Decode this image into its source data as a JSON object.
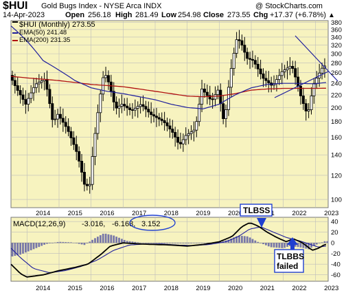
{
  "header": {
    "symbol": "$HUI",
    "description": "Gold Bugs Index - NYSE Arca INDX",
    "credit": "@ StockCharts.com",
    "date": "14-Apr-2023",
    "open_label": "Open",
    "open": "256.18",
    "high_label": "High",
    "high": "281.49",
    "low_label": "Low",
    "low": "254.98",
    "close_label": "Close",
    "close": "273.55",
    "chg_label": "Chg",
    "chg": "+17.37 (+6.78%)",
    "up_arrow": "▲"
  },
  "legend": [
    {
      "label": "$HUI (Monthly) 273.55",
      "color": "#000000"
    },
    {
      "label": "EMA(50) 241.48",
      "color": "#1e1e9c"
    },
    {
      "label": "EMA(200) 231.35",
      "color": "#b01010"
    }
  ],
  "macd_label": {
    "prefix": "MACD(12,26,9)",
    "macd": "-3.016,",
    "signal": "-6.168,",
    "hist": "3.152"
  },
  "annotations": {
    "tlbss": "TLBSS",
    "tlbbs_failed_1": "TLBBS",
    "tlbbs_failed_2": "failed"
  },
  "colors": {
    "panel_bg": "#f7f3bf",
    "grid": "#bcbcbc",
    "candle": "#000000",
    "ema50": "#1e1e9c",
    "ema200": "#b01010",
    "hist": "#7777a8",
    "annotation": "#1f3fd0"
  },
  "chart_data": [
    {
      "type": "candlestick",
      "title": "$HUI Gold Bugs Index - NYSE Arca INDX (Monthly)",
      "x_tick_labels": [
        "2014",
        "2015",
        "2016",
        "2017",
        "2018",
        "2019",
        "2020",
        "2021",
        "2022",
        "2023"
      ],
      "y_tick_labels": [
        100,
        120,
        140,
        160,
        180,
        200,
        220,
        240,
        260,
        280,
        300,
        320,
        340,
        360,
        380
      ],
      "ylim": [
        94,
        385
      ],
      "y_scale": "log",
      "x_range": [
        2013.5,
        2023.4
      ],
      "series": [
        {
          "name": "$HUI (Monthly)",
          "anchors_x": [
            2013.5,
            2013.7,
            2014.0,
            2014.3,
            2014.6,
            2014.85,
            2015.0,
            2015.3,
            2015.6,
            2015.85,
            2016.0,
            2016.2,
            2016.45,
            2016.6,
            2016.8,
            2017.0,
            2017.3,
            2017.6,
            2017.9,
            2018.3,
            2018.6,
            2018.8,
            2019.0,
            2019.3,
            2019.5,
            2019.8,
            2020.0,
            2020.2,
            2020.4,
            2020.6,
            2020.75,
            2020.9,
            2021.1,
            2021.4,
            2021.7,
            2022.0,
            2022.3,
            2022.6,
            2022.8,
            2023.0,
            2023.29
          ],
          "anchors_y": [
            255,
            232,
            205,
            238,
            248,
            178,
            190,
            170,
            142,
            110,
            112,
            175,
            262,
            240,
            198,
            205,
            195,
            205,
            190,
            180,
            165,
            150,
            162,
            170,
            230,
            210,
            228,
            175,
            262,
            340,
            320,
            290,
            285,
            250,
            235,
            262,
            275,
            215,
            188,
            240,
            273.55
          ]
        },
        {
          "name": "EMA(50)",
          "anchors_x": [
            2013.5,
            2014.0,
            2014.5,
            2015.0,
            2015.5,
            2016.0,
            2016.5,
            2017.0,
            2017.5,
            2018.0,
            2018.5,
            2019.0,
            2019.5,
            2020.0,
            2020.5,
            2021.0,
            2021.5,
            2022.0,
            2022.5,
            2023.0,
            2023.29
          ],
          "anchors_y": [
            370,
            330,
            285,
            265,
            245,
            232,
            226,
            222,
            217,
            212,
            205,
            200,
            198,
            205,
            220,
            232,
            238,
            240,
            240,
            239,
            241.48
          ]
        },
        {
          "name": "EMA(200)",
          "anchors_x": [
            2013.5,
            2014.0,
            2015.0,
            2016.0,
            2016.5,
            2017.0,
            2017.5,
            2018.0,
            2018.5,
            2019.0,
            2019.5,
            2020.0,
            2020.5,
            2021.0,
            2021.5,
            2022.0,
            2022.5,
            2023.0,
            2023.29
          ],
          "anchors_y": [
            253,
            250,
            245,
            238,
            236,
            234,
            230,
            226,
            222,
            218,
            217,
            218,
            222,
            228,
            230,
            231,
            231,
            231,
            231.35
          ]
        }
      ]
    },
    {
      "type": "line",
      "title": "MACD(12,26,9)",
      "y_tick_labels": [
        40,
        20,
        0,
        -20,
        -40,
        -60
      ],
      "ylim": [
        -72,
        48
      ],
      "series": [
        {
          "name": "MACD",
          "anchors_x": [
            2013.5,
            2013.8,
            2014.0,
            2014.5,
            2015.0,
            2015.5,
            2015.9,
            2016.3,
            2016.6,
            2017.0,
            2017.5,
            2018.0,
            2018.5,
            2019.0,
            2019.5,
            2020.0,
            2020.4,
            2020.7,
            2020.95,
            2021.2,
            2021.5,
            2021.8,
            2022.1,
            2022.3,
            2022.6,
            2022.9,
            2023.1,
            2023.29
          ],
          "anchors_y": [
            -40,
            -58,
            -64,
            -60,
            -52,
            -46,
            -40,
            -22,
            -6,
            0,
            -2,
            -3,
            -4,
            -6,
            -3,
            2,
            12,
            30,
            38,
            32,
            20,
            10,
            2,
            8,
            0,
            -14,
            -10,
            -3.016
          ]
        },
        {
          "name": "Signal",
          "anchors_x": [
            2013.5,
            2013.8,
            2014.2,
            2014.7,
            2015.2,
            2015.7,
            2016.2,
            2016.7,
            2017.2,
            2017.7,
            2018.2,
            2018.7,
            2019.2,
            2019.7,
            2020.2,
            2020.6,
            2020.95,
            2021.3,
            2021.7,
            2022.1,
            2022.5,
            2022.9,
            2023.1,
            2023.29
          ],
          "anchors_y": [
            -10,
            -28,
            -48,
            -56,
            -52,
            -44,
            -32,
            -14,
            -4,
            -2,
            -2,
            -4,
            -5,
            -3,
            2,
            12,
            26,
            30,
            20,
            10,
            4,
            -4,
            -8,
            -6.168
          ]
        },
        {
          "name": "Histogram",
          "anchors_x": [
            2013.5,
            2013.8,
            2014.2,
            2014.6,
            2015.0,
            2015.4,
            2015.8,
            2016.1,
            2016.4,
            2016.7,
            2017.1,
            2017.6,
            2018.1,
            2018.6,
            2019.1,
            2019.5,
            2020.0,
            2020.3,
            2020.6,
            2020.9,
            2021.2,
            2021.6,
            2022.0,
            2022.2,
            2022.5,
            2022.8,
            2023.0,
            2023.29
          ],
          "anchors_y": [
            -26,
            -22,
            -12,
            -2,
            2,
            1,
            -4,
            8,
            18,
            14,
            4,
            0,
            -1,
            -1,
            -1,
            0,
            1,
            6,
            14,
            12,
            2,
            -8,
            -10,
            -6,
            -8,
            -12,
            -4,
            3.152
          ]
        }
      ]
    }
  ]
}
